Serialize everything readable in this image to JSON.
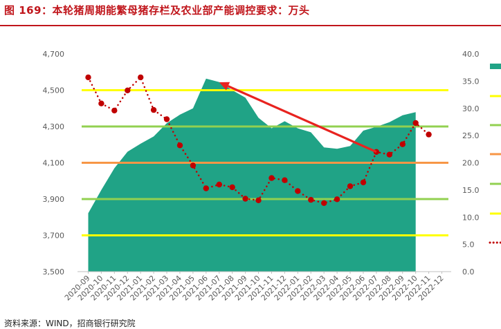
{
  "figure": {
    "title": "图 169：本轮猪周期能繁母猪存栏及农业部产能调控要求：万头",
    "source": "资料来源：WIND，招商银行研究院"
  },
  "colors": {
    "area": "#20a386",
    "yellow": "#ffff00",
    "green": "#92d050",
    "orange": "#f79646",
    "dots": "#c00000",
    "arrow": "#e8231f",
    "title": "#c0151b",
    "text": "#595959"
  },
  "chart_data": {
    "type": "area",
    "x": [
      "2020-09",
      "2020-10",
      "2020-11",
      "2020-12",
      "2021-01",
      "2021-02",
      "2021-03",
      "2021-04",
      "2021-05",
      "2021-06",
      "2021-07",
      "2021-08",
      "2021-09",
      "2021-10",
      "2021-11",
      "2021-12",
      "2022-01",
      "2022-02",
      "2022-03",
      "2022-04",
      "2022-05",
      "2022-06",
      "2022-07",
      "2022-08",
      "2022-09",
      "2022-10",
      "2022-11",
      "2022-12"
    ],
    "y_left": {
      "ylim": [
        3500,
        4700
      ],
      "ticks": [
        "3,500",
        "3,700",
        "3,900",
        "4,100",
        "4,300",
        "4,500",
        "4,700"
      ]
    },
    "y_right": {
      "ylim": [
        0,
        40
      ],
      "ticks": [
        "0.0",
        "5.0",
        "10.0",
        "15.0",
        "20.0",
        "25.0",
        "30.0",
        "35.0",
        "40.0"
      ]
    },
    "series": [
      {
        "kind": "area",
        "axis": "left",
        "values": [
          3822,
          3950,
          4070,
          4161,
          4205,
          4245,
          4318,
          4365,
          4400,
          4564,
          4545,
          4500,
          4459,
          4348,
          4290,
          4329,
          4290,
          4268,
          4185,
          4177,
          4192,
          4277,
          4298,
          4324,
          4362,
          4379,
          null,
          null
        ]
      },
      {
        "kind": "dotted-line",
        "axis": "right",
        "values": [
          35.7,
          30.9,
          29.6,
          33.3,
          35.7,
          29.7,
          28.0,
          23.2,
          19.5,
          15.3,
          16.0,
          15.5,
          13.4,
          13.1,
          17.2,
          16.8,
          14.8,
          13.2,
          12.6,
          13.3,
          15.7,
          16.4,
          22.0,
          21.5,
          23.4,
          27.3,
          25.2,
          null
        ]
      }
    ],
    "reference_lines": [
      {
        "value": 4500,
        "color": "yellow"
      },
      {
        "value": 4300,
        "color": "green"
      },
      {
        "value": 4100,
        "color": "orange"
      },
      {
        "value": 3900,
        "color": "green"
      },
      {
        "value": 3700,
        "color": "yellow"
      }
    ],
    "annotations": [
      {
        "type": "arrow",
        "from": [
          "2022-07",
          22.0
        ],
        "to": [
          "2021-07",
          34.8
        ]
      }
    ],
    "legend": {
      "position": "right",
      "entries": [
        "",
        "",
        "",
        "",
        "",
        "",
        ""
      ]
    }
  }
}
